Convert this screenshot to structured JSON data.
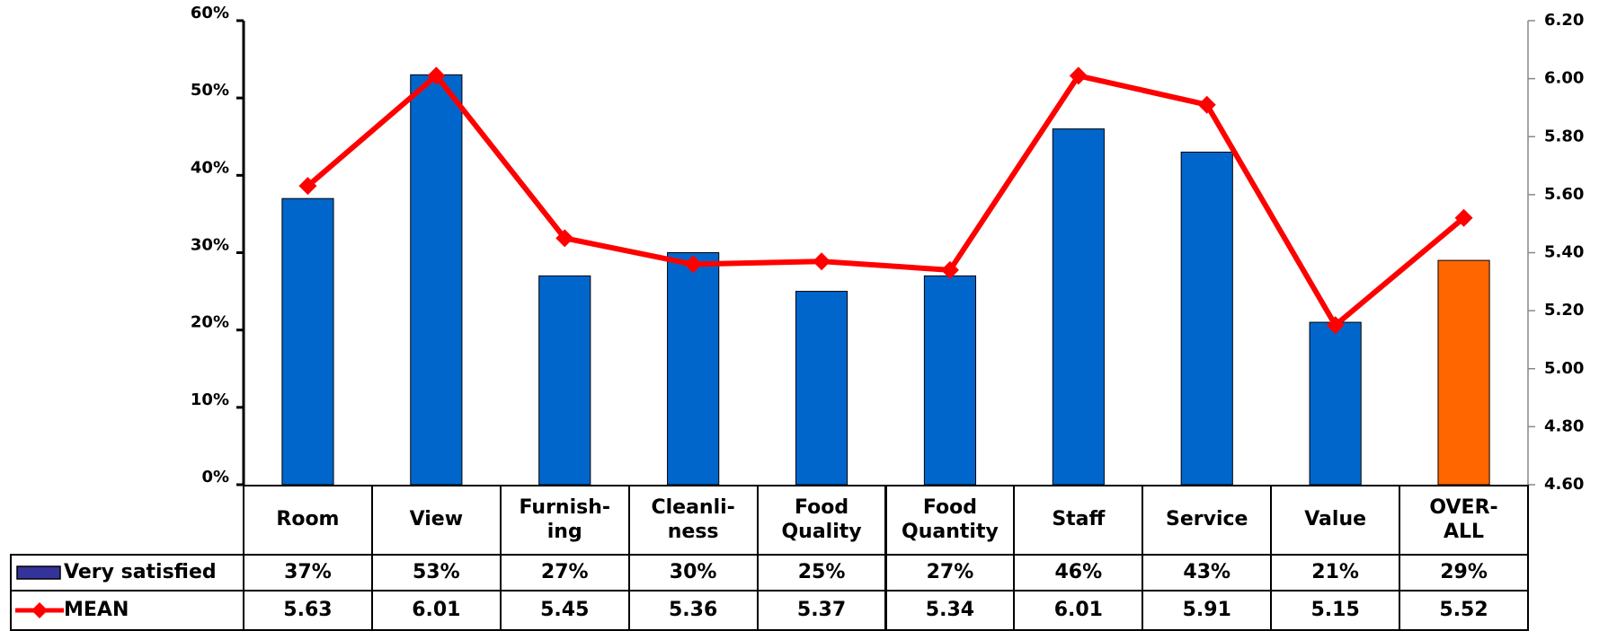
{
  "chart_data": {
    "type": "bar_line",
    "categories": [
      "Room",
      "View",
      "Furnish-\ning",
      "Cleanli-\nness",
      "Food\nQuality",
      "Food\nQuantity",
      "Staff",
      "Service",
      "Value",
      "OVER-\nALL"
    ],
    "series": [
      {
        "name": "Very satisfied",
        "type": "bar",
        "color": "#0066cc",
        "legend_color": "#333399",
        "bar_colors": [
          "#0066cc",
          "#0066cc",
          "#0066cc",
          "#0066cc",
          "#0066cc",
          "#0066cc",
          "#0066cc",
          "#0066cc",
          "#0066cc",
          "#ff6600"
        ],
        "values": [
          37,
          53,
          27,
          30,
          25,
          27,
          46,
          43,
          21,
          29
        ],
        "value_labels": [
          "37%",
          "53%",
          "27%",
          "30%",
          "25%",
          "27%",
          "46%",
          "43%",
          "21%",
          "29%"
        ]
      },
      {
        "name": "MEAN",
        "type": "line",
        "axis": "y2",
        "color": "#ff0000",
        "values": [
          5.63,
          6.01,
          5.45,
          5.36,
          5.37,
          5.34,
          6.01,
          5.91,
          5.15,
          5.52
        ]
      }
    ],
    "ylim": [
      0,
      60
    ],
    "yticks": [
      {
        "value": 0,
        "label": "0%"
      },
      {
        "value": 10,
        "label": "10%"
      },
      {
        "value": 20,
        "label": "20%"
      },
      {
        "value": 30,
        "label": "30%"
      },
      {
        "value": 40,
        "label": "40%"
      },
      {
        "value": 50,
        "label": "50%"
      },
      {
        "value": 60,
        "label": "60%"
      }
    ],
    "y2lim": [
      4.6,
      6.2
    ],
    "y2ticks": [
      {
        "value": 4.6,
        "label": "4.60"
      },
      {
        "value": 4.8,
        "label": "4.80"
      },
      {
        "value": 5.0,
        "label": "5.00"
      },
      {
        "value": 5.2,
        "label": "5.20"
      },
      {
        "value": 5.4,
        "label": "5.40"
      },
      {
        "value": 5.6,
        "label": "5.60"
      },
      {
        "value": 5.8,
        "label": "5.80"
      },
      {
        "value": 6.0,
        "label": "6.00"
      },
      {
        "value": 6.2,
        "label": "6.20"
      }
    ],
    "grid": false,
    "data_table": true
  }
}
